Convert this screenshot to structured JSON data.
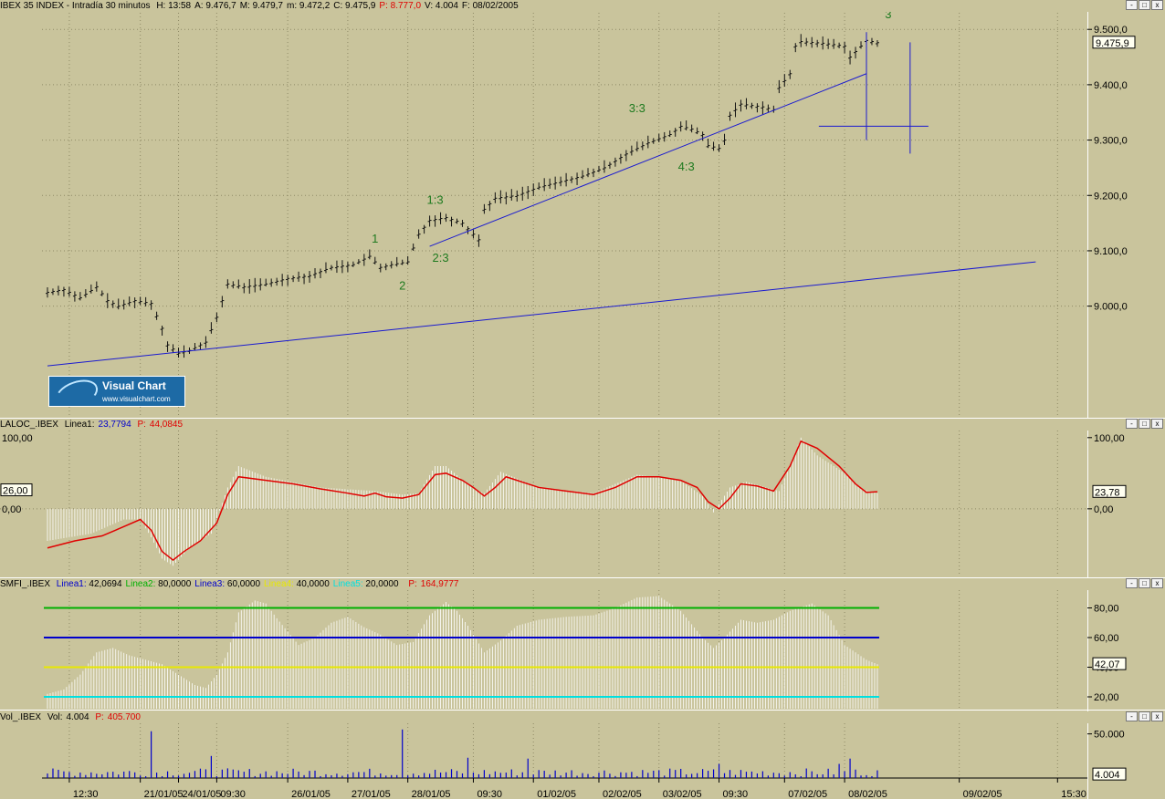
{
  "windows": {
    "price": {
      "title": "IBEX 35 INDEX - Intradía 30 minutos",
      "stats": [
        {
          "label": "H:",
          "value": "13:58",
          "color": "#000000"
        },
        {
          "label": "A:",
          "value": "9.476,7",
          "color": "#000000"
        },
        {
          "label": "M:",
          "value": "9.479,7",
          "color": "#000000"
        },
        {
          "label": "m:",
          "value": "9.472,2",
          "color": "#000000"
        },
        {
          "label": "C:",
          "value": "9.475,9",
          "color": "#000000"
        },
        {
          "label": "P:",
          "value": "8.777,0",
          "color": "#e00000"
        },
        {
          "label": "V:",
          "value": "4.004",
          "color": "#000000"
        },
        {
          "label": "F:",
          "value": "08/02/2005",
          "color": "#000000"
        }
      ],
      "last_price_label": "9.475,9"
    },
    "laloc": {
      "name": "LALOC_.IBEX",
      "linea1_label": "Linea1:",
      "linea1_value": "23,7794",
      "p_label": "P:",
      "p_value": "44,0845",
      "left_label": "26,00",
      "current_label": "23,78"
    },
    "smfi": {
      "name": "SMFI_.IBEX",
      "lines": [
        {
          "label": "Linea1:",
          "value": "42,0694",
          "color": "#0000cc"
        },
        {
          "label": "Linea2:",
          "value": "80,0000",
          "color": "#00b000"
        },
        {
          "label": "Linea3:",
          "value": "60,0000",
          "color": "#0000cc"
        },
        {
          "label": "Linea4:",
          "value": "40,0000",
          "color": "#e8e800"
        },
        {
          "label": "Linea5:",
          "value": "20,0000",
          "color": "#00e0e0"
        }
      ],
      "p_label": "P:",
      "p_value": "164,9777",
      "current_label": "42,07"
    },
    "volume": {
      "name": "Vol_.IBEX",
      "vol_label": "Vol:",
      "vol_value": "4.004",
      "p_label": "P:",
      "p_value": "405.700",
      "current_label": "4.004"
    }
  },
  "window_buttons": [
    "-",
    "□",
    "x"
  ],
  "logo": {
    "title": "Visual Chart",
    "url": "www.visualchart.com"
  },
  "colors": {
    "background": "#c9c49c",
    "trendline": "#1a1ad0",
    "wave_labels": "#1f7a1f",
    "bars": "#111111",
    "oscillator_line": "#e00000",
    "histogram": "#ffffff"
  },
  "chart_data": [
    {
      "type": "ohlc",
      "title": "IBEX 35 INDEX - Intradía 30 minutos",
      "x_tick_labels": [
        "12:30",
        "21/01/05",
        "24/01/05",
        "09:30",
        "26/01/05",
        "27/01/05",
        "28/01/05",
        "09:30",
        "01/02/05",
        "02/02/05",
        "03/02/05",
        "09:30",
        "07/02/05",
        "08/02/05",
        "09/02/05",
        "15:30"
      ],
      "y_tick_labels": [
        "9.000,0",
        "9.100,0",
        "9.200,0",
        "9.300,0",
        "9.400,0",
        "9.500,0"
      ],
      "ylim": [
        8800,
        9530
      ],
      "close_path": [
        [
          0,
          9025
        ],
        [
          3,
          9030
        ],
        [
          6,
          9015
        ],
        [
          9,
          9035
        ],
        [
          11,
          9010
        ],
        [
          13,
          9000
        ],
        [
          16,
          9010
        ],
        [
          19,
          9005
        ],
        [
          21,
          8960
        ],
        [
          22,
          8930
        ],
        [
          24,
          8915
        ],
        [
          26,
          8920
        ],
        [
          29,
          8935
        ],
        [
          31,
          8980
        ],
        [
          33,
          9040
        ],
        [
          36,
          9035
        ],
        [
          40,
          9040
        ],
        [
          44,
          9050
        ],
        [
          48,
          9055
        ],
        [
          52,
          9070
        ],
        [
          56,
          9075
        ],
        [
          59,
          9090
        ],
        [
          61,
          9070
        ],
        [
          63,
          9075
        ],
        [
          66,
          9080
        ],
        [
          68,
          9130
        ],
        [
          70,
          9155
        ],
        [
          73,
          9160
        ],
        [
          76,
          9150
        ],
        [
          78,
          9130
        ],
        [
          79,
          9120
        ],
        [
          80,
          9175
        ],
        [
          82,
          9195
        ],
        [
          86,
          9200
        ],
        [
          90,
          9215
        ],
        [
          94,
          9225
        ],
        [
          98,
          9235
        ],
        [
          102,
          9250
        ],
        [
          106,
          9275
        ],
        [
          110,
          9295
        ],
        [
          114,
          9310
        ],
        [
          116,
          9325
        ],
        [
          118,
          9320
        ],
        [
          120,
          9310
        ],
        [
          121,
          9290
        ],
        [
          123,
          9285
        ],
        [
          124,
          9300
        ],
        [
          125,
          9345
        ],
        [
          127,
          9365
        ],
        [
          131,
          9360
        ],
        [
          133,
          9355
        ],
        [
          134,
          9395
        ],
        [
          136,
          9420
        ],
        [
          137,
          9470
        ],
        [
          138,
          9478
        ],
        [
          142,
          9475
        ],
        [
          146,
          9470
        ],
        [
          147,
          9450
        ],
        [
          149,
          9470
        ],
        [
          150,
          9480
        ],
        [
          152,
          9476
        ]
      ],
      "trendlines": [
        [
          [
            0,
            8892
          ],
          [
            181,
            9080
          ]
        ],
        [
          [
            70,
            9108
          ],
          [
            150,
            9420
          ]
        ]
      ],
      "crosshair": {
        "x": 158,
        "y": 9325
      },
      "wave_labels": [
        {
          "text": "1",
          "x": 60,
          "y": 9115
        },
        {
          "text": "2",
          "x": 65,
          "y": 9030
        },
        {
          "text": "1:3",
          "x": 71,
          "y": 9185
        },
        {
          "text": "2:3",
          "x": 72,
          "y": 9080
        },
        {
          "text": "3:3",
          "x": 108,
          "y": 9350
        },
        {
          "text": "4:3",
          "x": 117,
          "y": 9245
        },
        {
          "text": "3",
          "x": 154,
          "y": 9520
        }
      ]
    },
    {
      "type": "bar",
      "name": "LALOC_.IBEX",
      "y_tick_labels": [
        "0,00",
        "100,00"
      ],
      "ylim": [
        -95,
        110
      ],
      "line_path": [
        [
          0,
          -55
        ],
        [
          5,
          -45
        ],
        [
          10,
          -38
        ],
        [
          14,
          -25
        ],
        [
          17,
          -15
        ],
        [
          19,
          -30
        ],
        [
          21,
          -60
        ],
        [
          23,
          -72
        ],
        [
          25,
          -60
        ],
        [
          28,
          -45
        ],
        [
          31,
          -20
        ],
        [
          33,
          20
        ],
        [
          35,
          45
        ],
        [
          40,
          40
        ],
        [
          45,
          35
        ],
        [
          50,
          28
        ],
        [
          55,
          22
        ],
        [
          58,
          18
        ],
        [
          60,
          22
        ],
        [
          62,
          17
        ],
        [
          65,
          15
        ],
        [
          68,
          20
        ],
        [
          71,
          48
        ],
        [
          73,
          50
        ],
        [
          76,
          40
        ],
        [
          78,
          30
        ],
        [
          80,
          18
        ],
        [
          82,
          30
        ],
        [
          84,
          45
        ],
        [
          86,
          40
        ],
        [
          90,
          30
        ],
        [
          95,
          25
        ],
        [
          100,
          20
        ],
        [
          104,
          30
        ],
        [
          108,
          45
        ],
        [
          112,
          45
        ],
        [
          116,
          40
        ],
        [
          119,
          30
        ],
        [
          121,
          10
        ],
        [
          123,
          0
        ],
        [
          125,
          15
        ],
        [
          127,
          35
        ],
        [
          130,
          32
        ],
        [
          133,
          25
        ],
        [
          136,
          60
        ],
        [
          138,
          95
        ],
        [
          141,
          85
        ],
        [
          145,
          60
        ],
        [
          148,
          35
        ],
        [
          150,
          23
        ],
        [
          152,
          24
        ]
      ],
      "histogram_path": [
        [
          0,
          -45
        ],
        [
          8,
          -35
        ],
        [
          14,
          -15
        ],
        [
          17,
          -15
        ],
        [
          19,
          -40
        ],
        [
          21,
          -70
        ],
        [
          23,
          -80
        ],
        [
          26,
          -55
        ],
        [
          30,
          -35
        ],
        [
          33,
          30
        ],
        [
          35,
          60
        ],
        [
          40,
          45
        ],
        [
          50,
          30
        ],
        [
          60,
          25
        ],
        [
          65,
          20
        ],
        [
          68,
          22
        ],
        [
          71,
          60
        ],
        [
          73,
          60
        ],
        [
          78,
          28
        ],
        [
          80,
          22
        ],
        [
          83,
          52
        ],
        [
          90,
          30
        ],
        [
          100,
          22
        ],
        [
          108,
          48
        ],
        [
          116,
          40
        ],
        [
          120,
          18
        ],
        [
          122,
          -5
        ],
        [
          125,
          30
        ],
        [
          128,
          38
        ],
        [
          134,
          25
        ],
        [
          137,
          80
        ],
        [
          138,
          100
        ],
        [
          141,
          75
        ],
        [
          146,
          50
        ],
        [
          149,
          28
        ],
        [
          152,
          22
        ]
      ]
    },
    {
      "type": "bar",
      "name": "SMFI_.IBEX",
      "y_tick_labels": [
        "20,00",
        "40,00",
        "60,00",
        "80,00"
      ],
      "ylim": [
        12,
        92
      ],
      "series": [
        {
          "name": "Linea1",
          "values_path": [
            [
              0,
              22
            ],
            [
              3,
              25
            ],
            [
              6,
              35
            ],
            [
              9,
              50
            ],
            [
              12,
              53
            ],
            [
              15,
              48
            ],
            [
              18,
              45
            ],
            [
              21,
              42
            ],
            [
              24,
              35
            ],
            [
              27,
              28
            ],
            [
              29,
              26
            ],
            [
              31,
              35
            ],
            [
              33,
              50
            ],
            [
              35,
              77
            ],
            [
              38,
              85
            ],
            [
              40,
              83
            ],
            [
              42,
              73
            ],
            [
              46,
              55
            ],
            [
              49,
              60
            ],
            [
              52,
              70
            ],
            [
              55,
              74
            ],
            [
              58,
              67
            ],
            [
              61,
              62
            ],
            [
              64,
              55
            ],
            [
              67,
              57
            ],
            [
              70,
              75
            ],
            [
              73,
              84
            ],
            [
              75,
              78
            ],
            [
              77,
              68
            ],
            [
              80,
              50
            ],
            [
              83,
              58
            ],
            [
              86,
              68
            ],
            [
              90,
              72
            ],
            [
              95,
              74
            ],
            [
              100,
              75
            ],
            [
              104,
              80
            ],
            [
              108,
              87
            ],
            [
              112,
              88
            ],
            [
              116,
              78
            ],
            [
              120,
              60
            ],
            [
              122,
              53
            ],
            [
              124,
              60
            ],
            [
              127,
              72
            ],
            [
              130,
              70
            ],
            [
              133,
              72
            ],
            [
              136,
              78
            ],
            [
              140,
              83
            ],
            [
              143,
              75
            ],
            [
              146,
              55
            ],
            [
              150,
              45
            ],
            [
              152,
              42
            ]
          ]
        },
        {
          "name": "Linea2",
          "level": 80
        },
        {
          "name": "Linea3",
          "level": 60
        },
        {
          "name": "Linea4",
          "level": 40
        },
        {
          "name": "Linea5",
          "level": 20
        }
      ]
    },
    {
      "type": "bar",
      "name": "Vol_.IBEX",
      "y_tick_labels": [
        "50.000"
      ],
      "ylim": [
        0,
        62000
      ],
      "spikes": [
        {
          "x": 19,
          "value": 53000
        },
        {
          "x": 30,
          "value": 25000
        },
        {
          "x": 65,
          "value": 55000
        },
        {
          "x": 77,
          "value": 23000
        },
        {
          "x": 88,
          "value": 22000
        },
        {
          "x": 123,
          "value": 16000
        },
        {
          "x": 147,
          "value": 22000
        },
        {
          "x": 145,
          "value": 16000
        }
      ],
      "baseline_range": [
        2000,
        11000
      ]
    }
  ]
}
